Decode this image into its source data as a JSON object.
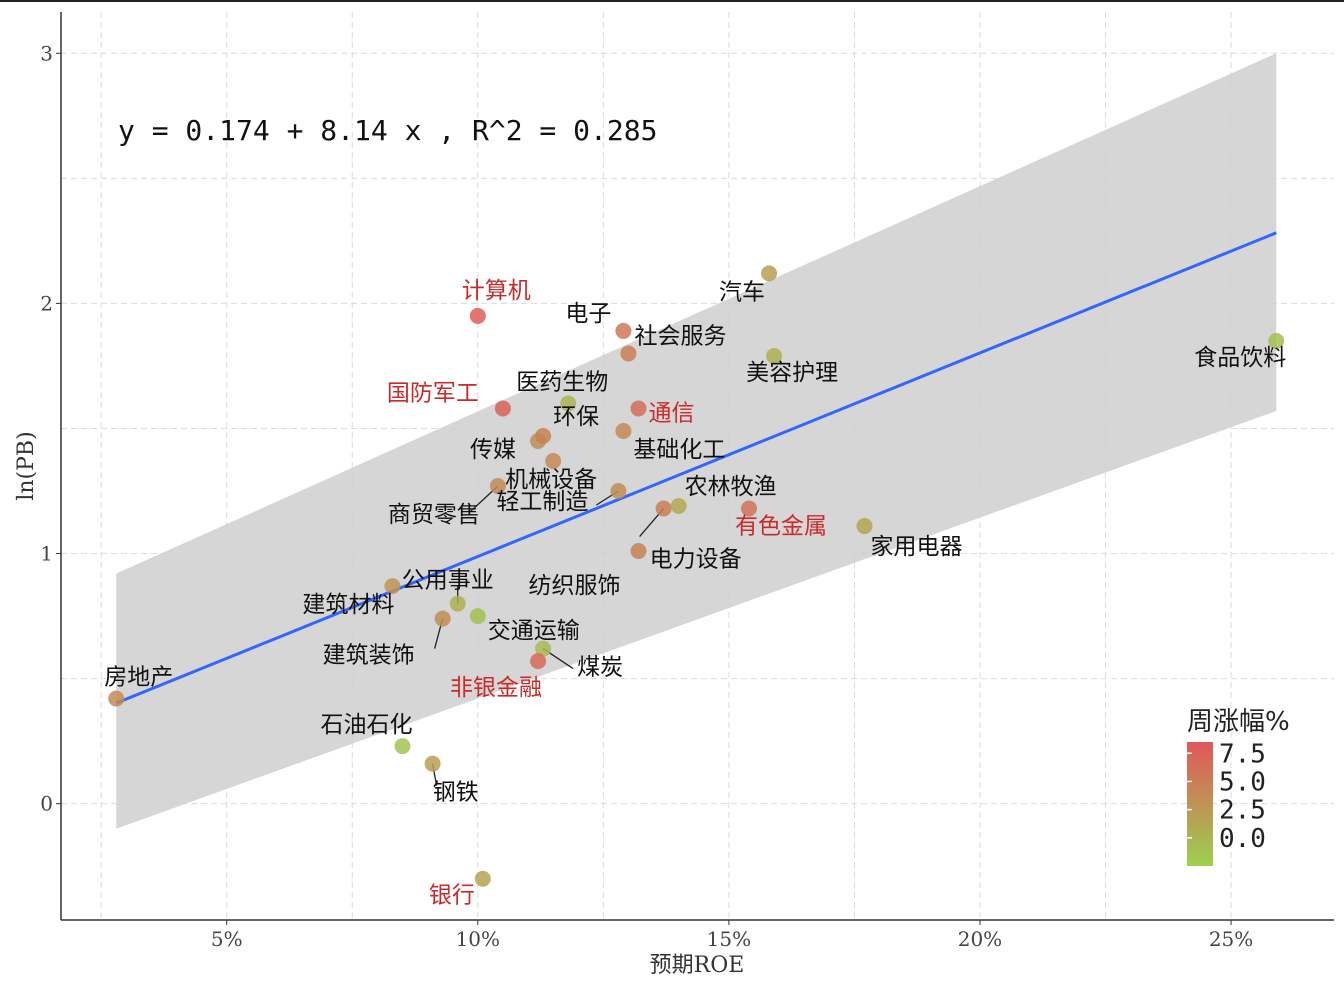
{
  "chart_data": {
    "type": "scatter",
    "xlabel": "预期ROE",
    "ylabel": "ln(PB)",
    "xlim": [
      0.017,
      0.2705
    ],
    "ylim": [
      -0.465,
      3.165
    ],
    "x_ticks": [
      0.05,
      0.1,
      0.15,
      0.2,
      0.25
    ],
    "x_tick_labels": [
      "5%",
      "10%",
      "15%",
      "20%",
      "25%"
    ],
    "y_ticks": [
      0,
      1,
      2,
      3
    ],
    "y_tick_labels": [
      "0",
      "1",
      "2",
      "3"
    ],
    "grid": true,
    "regression": {
      "intercept": 0.174,
      "slope": 8.14,
      "r2": 0.285,
      "equation_text": "y = 0.174 + 8.14 x , R^2 = 0.285",
      "line_color": "#3366ff",
      "x_range": [
        0.028,
        0.259
      ],
      "band_lower": [
        -0.1,
        1.57
      ],
      "band_upper": [
        0.92,
        3.0
      ]
    },
    "color_legend": {
      "title": "周涨幅%",
      "ticks": [
        "7.5",
        "5.0",
        "2.5",
        "0.0"
      ],
      "tick_values": [
        7.5,
        5.0,
        2.5,
        0.0
      ],
      "range": [
        -2.5,
        8.5
      ],
      "low_color": "#9bd150",
      "high_color": "#e15759"
    },
    "highlight_color": "#cc2a2a",
    "text_color": "#111111",
    "points": [
      {
        "name": "房地产",
        "x": 0.028,
        "y": 0.42,
        "change": 4.0,
        "highlight": false
      },
      {
        "name": "石油石化",
        "x": 0.085,
        "y": 0.23,
        "change": -1.5,
        "highlight": false
      },
      {
        "name": "钢铁",
        "x": 0.091,
        "y": 0.16,
        "change": 2.0,
        "highlight": false
      },
      {
        "name": "银行",
        "x": 0.101,
        "y": -0.3,
        "change": 1.5,
        "highlight": true
      },
      {
        "name": "建筑材料",
        "x": 0.083,
        "y": 0.87,
        "change": 3.0,
        "highlight": false
      },
      {
        "name": "公用事业",
        "x": 0.096,
        "y": 0.8,
        "change": 0.5,
        "highlight": false
      },
      {
        "name": "建筑装饰",
        "x": 0.093,
        "y": 0.74,
        "change": 3.5,
        "highlight": false
      },
      {
        "name": "交通运输",
        "x": 0.1,
        "y": 0.75,
        "change": -1.0,
        "highlight": false
      },
      {
        "name": "煤炭",
        "x": 0.113,
        "y": 0.62,
        "change": -0.5,
        "highlight": false
      },
      {
        "name": "非银金融",
        "x": 0.112,
        "y": 0.57,
        "change": 7.0,
        "highlight": true
      },
      {
        "name": "纺织服饰",
        "x": 0.132,
        "y": 1.01,
        "change": 4.5,
        "highlight": false
      },
      {
        "name": "电力设备",
        "x": 0.137,
        "y": 1.18,
        "change": 5.0,
        "highlight": false
      },
      {
        "name": "轻工制造",
        "x": 0.128,
        "y": 1.25,
        "change": 3.5,
        "highlight": false
      },
      {
        "name": "农林牧渔",
        "x": 0.14,
        "y": 1.19,
        "change": 1.0,
        "highlight": false
      },
      {
        "name": "商贸零售",
        "x": 0.104,
        "y": 1.27,
        "change": 4.0,
        "highlight": false
      },
      {
        "name": "机械设备",
        "x": 0.115,
        "y": 1.37,
        "change": 4.0,
        "highlight": false
      },
      {
        "name": "传媒",
        "x": 0.112,
        "y": 1.45,
        "change": 3.5,
        "highlight": false
      },
      {
        "name": "环保",
        "x": 0.113,
        "y": 1.47,
        "change": 4.5,
        "highlight": false
      },
      {
        "name": "医药生物",
        "x": 0.118,
        "y": 1.6,
        "change": 0.0,
        "highlight": false
      },
      {
        "name": "基础化工",
        "x": 0.129,
        "y": 1.49,
        "change": 4.0,
        "highlight": false
      },
      {
        "name": "通信",
        "x": 0.132,
        "y": 1.58,
        "change": 6.5,
        "highlight": true
      },
      {
        "name": "国防军工",
        "x": 0.105,
        "y": 1.58,
        "change": 7.5,
        "highlight": true
      },
      {
        "name": "计算机",
        "x": 0.1,
        "y": 1.95,
        "change": 8.0,
        "highlight": true
      },
      {
        "name": "电子",
        "x": 0.129,
        "y": 1.89,
        "change": 5.5,
        "highlight": false
      },
      {
        "name": "社会服务",
        "x": 0.13,
        "y": 1.8,
        "change": 5.0,
        "highlight": false
      },
      {
        "name": "汽车",
        "x": 0.158,
        "y": 2.12,
        "change": 2.0,
        "highlight": false
      },
      {
        "name": "美容护理",
        "x": 0.159,
        "y": 1.79,
        "change": 0.5,
        "highlight": false
      },
      {
        "name": "有色金属",
        "x": 0.154,
        "y": 1.18,
        "change": 6.0,
        "highlight": true
      },
      {
        "name": "家用电器",
        "x": 0.177,
        "y": 1.11,
        "change": 1.5,
        "highlight": false
      },
      {
        "name": "食品饮料",
        "x": 0.259,
        "y": 1.85,
        "change": -1.0,
        "highlight": false
      }
    ]
  }
}
